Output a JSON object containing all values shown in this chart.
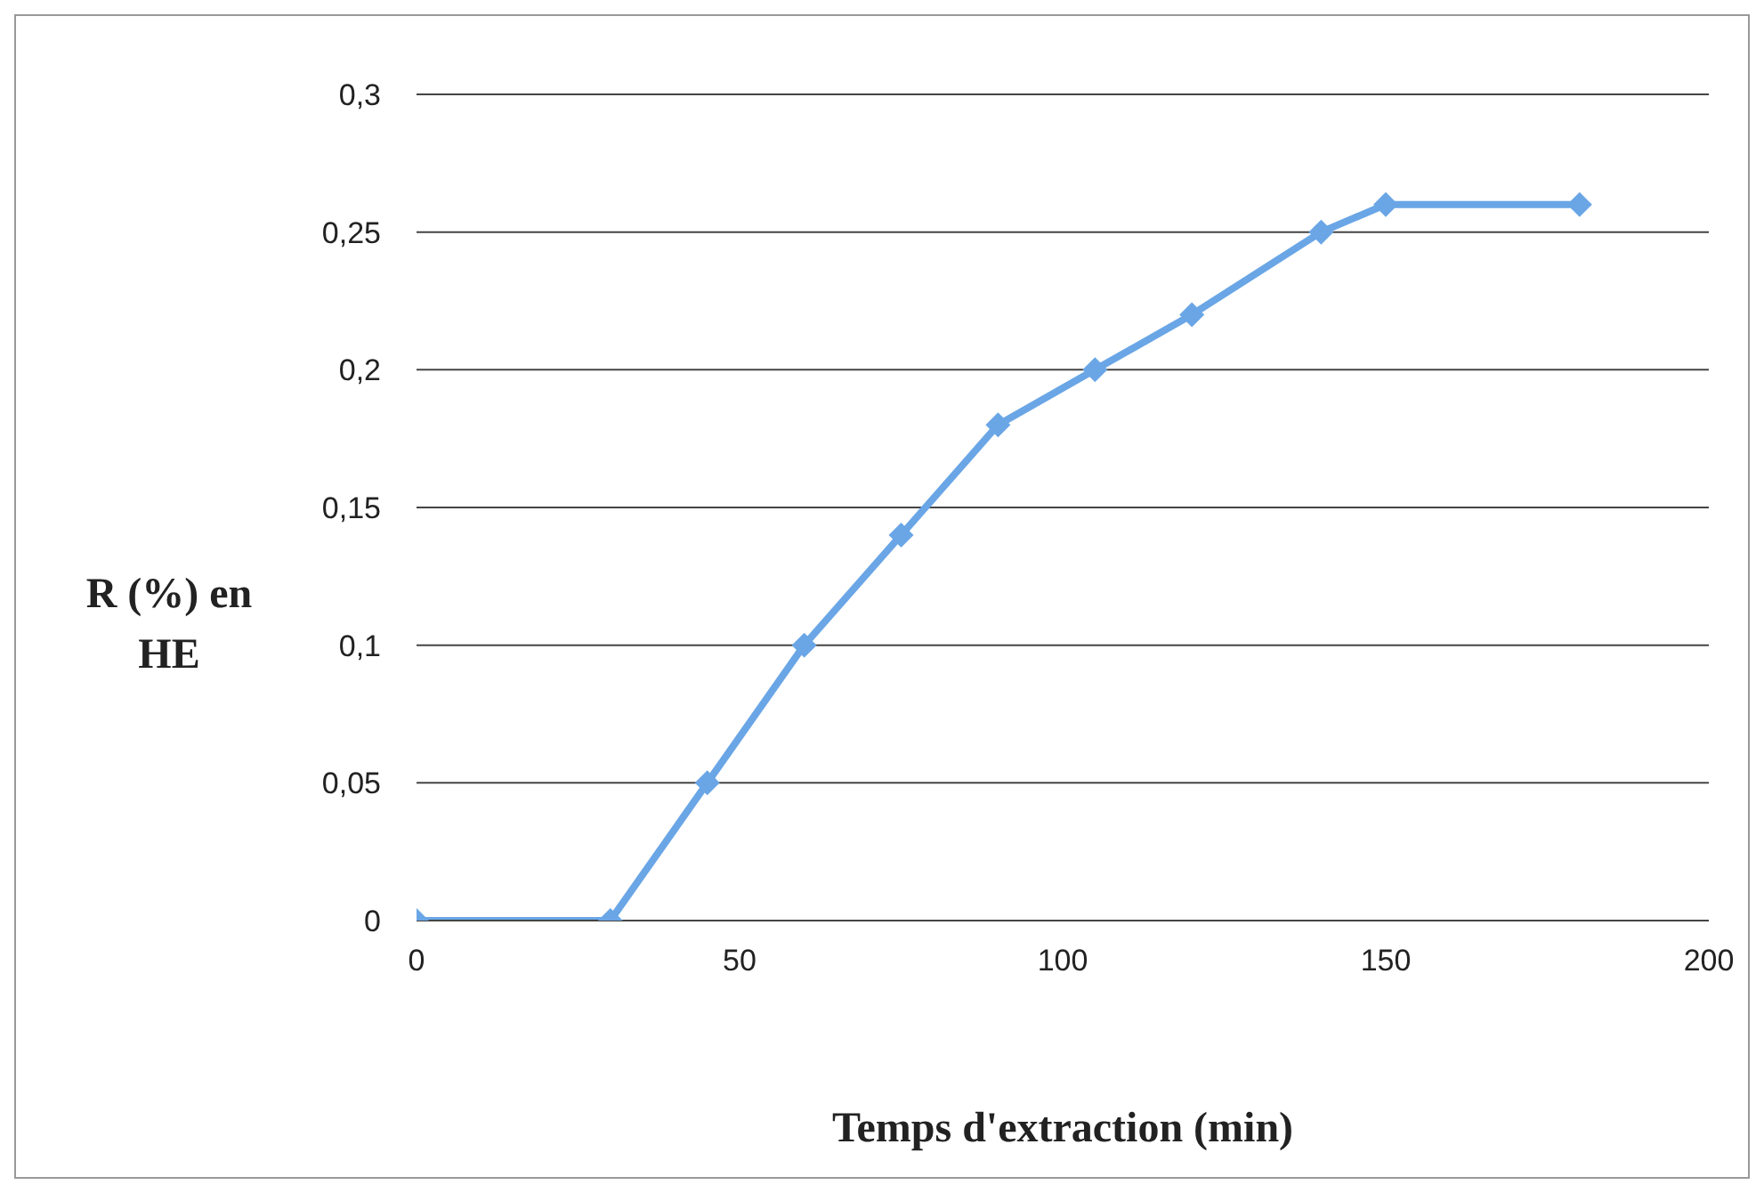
{
  "chart_data": {
    "type": "line",
    "xlabel": "Temps d'extraction (min)",
    "ylabel": "R (%) en HE",
    "x": [
      0,
      30,
      45,
      60,
      75,
      90,
      105,
      120,
      140,
      150,
      180
    ],
    "series": [
      {
        "color": "#6aa6e6",
        "values": [
          0,
          0,
          0.05,
          0.1,
          0.14,
          0.18,
          0.2,
          0.22,
          0.25,
          0.26,
          0.26
        ]
      }
    ],
    "xlim": [
      0,
      200
    ],
    "xticks": [
      0,
      50,
      100,
      150,
      200
    ],
    "ylim": [
      0,
      0.3
    ],
    "yticks": [
      0,
      {
        "value": 0.05,
        "label": "0,05"
      },
      {
        "value": 0.1,
        "label": "0,1"
      },
      {
        "value": 0.15,
        "label": "0,15"
      },
      {
        "value": 0.2,
        "label": "0,2"
      },
      {
        "value": 0.25,
        "label": "0,25"
      },
      {
        "value": 0.3,
        "label": "0,3"
      }
    ],
    "grid": "y",
    "legend": false,
    "marker": "diamond",
    "line_style": "solid"
  }
}
